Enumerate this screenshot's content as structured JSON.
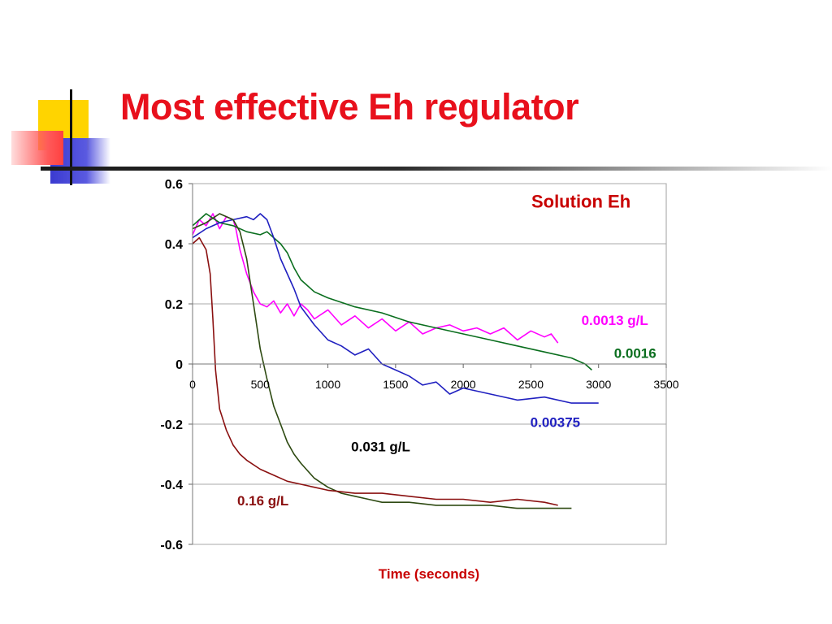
{
  "slide": {
    "title": "Most effective Eh regulator"
  },
  "chart_data": {
    "type": "line",
    "title": "Solution Eh",
    "xlabel": "Time (seconds)",
    "ylabel": "",
    "xlim": [
      0,
      3500
    ],
    "ylim": [
      -0.6,
      0.6
    ],
    "x_ticks": [
      "0",
      "500",
      "1000",
      "1500",
      "2000",
      "2500",
      "3000",
      "3500"
    ],
    "y_ticks": [
      "0.6",
      "0.4",
      "0.2",
      "0",
      "-0.2",
      "-0.4",
      "-0.6"
    ],
    "grid": true,
    "legend": "none (series labeled directly on plot)",
    "series": [
      {
        "name": "0.0013 g/L",
        "color": "#ff00ff",
        "x": [
          0,
          50,
          100,
          150,
          200,
          250,
          300,
          320,
          350,
          400,
          450,
          500,
          550,
          600,
          650,
          700,
          750,
          800,
          850,
          900,
          1000,
          1100,
          1200,
          1300,
          1400,
          1500,
          1600,
          1700,
          1800,
          1900,
          2000,
          2100,
          2200,
          2300,
          2400,
          2500,
          2600,
          2650,
          2700
        ],
        "y": [
          0.43,
          0.48,
          0.46,
          0.5,
          0.45,
          0.49,
          0.48,
          0.45,
          0.38,
          0.3,
          0.24,
          0.2,
          0.19,
          0.21,
          0.17,
          0.2,
          0.16,
          0.2,
          0.18,
          0.15,
          0.18,
          0.13,
          0.16,
          0.12,
          0.15,
          0.11,
          0.14,
          0.1,
          0.12,
          0.13,
          0.11,
          0.12,
          0.1,
          0.12,
          0.08,
          0.11,
          0.09,
          0.1,
          0.07
        ]
      },
      {
        "name": "0.0016",
        "color": "#0a6e1e",
        "x": [
          0,
          100,
          200,
          300,
          400,
          500,
          550,
          600,
          650,
          700,
          750,
          800,
          900,
          1000,
          1200,
          1400,
          1600,
          1800,
          2000,
          2200,
          2400,
          2600,
          2800,
          2900,
          2950
        ],
        "y": [
          0.46,
          0.5,
          0.47,
          0.46,
          0.44,
          0.43,
          0.44,
          0.42,
          0.4,
          0.37,
          0.32,
          0.28,
          0.24,
          0.22,
          0.19,
          0.17,
          0.14,
          0.12,
          0.1,
          0.08,
          0.06,
          0.04,
          0.02,
          0.0,
          -0.02
        ]
      },
      {
        "name": "0.00375",
        "color": "#2020c0",
        "x": [
          0,
          100,
          200,
          300,
          400,
          450,
          500,
          550,
          600,
          650,
          700,
          750,
          800,
          900,
          1000,
          1100,
          1200,
          1300,
          1400,
          1500,
          1600,
          1700,
          1800,
          1900,
          2000,
          2200,
          2400,
          2600,
          2800,
          3000
        ],
        "y": [
          0.42,
          0.45,
          0.47,
          0.48,
          0.49,
          0.48,
          0.5,
          0.48,
          0.42,
          0.35,
          0.3,
          0.25,
          0.19,
          0.13,
          0.08,
          0.06,
          0.03,
          0.05,
          0.0,
          -0.02,
          -0.04,
          -0.07,
          -0.06,
          -0.1,
          -0.08,
          -0.1,
          -0.12,
          -0.11,
          -0.13,
          -0.13
        ]
      },
      {
        "name": "0.031 g/L",
        "color": "#2e4a12",
        "x": [
          0,
          100,
          200,
          300,
          350,
          400,
          450,
          500,
          550,
          600,
          650,
          700,
          750,
          800,
          900,
          1000,
          1100,
          1200,
          1300,
          1400,
          1600,
          1800,
          2000,
          2200,
          2400,
          2600,
          2800
        ],
        "y": [
          0.45,
          0.47,
          0.5,
          0.48,
          0.44,
          0.35,
          0.2,
          0.05,
          -0.05,
          -0.14,
          -0.2,
          -0.26,
          -0.3,
          -0.33,
          -0.38,
          -0.41,
          -0.43,
          -0.44,
          -0.45,
          -0.46,
          -0.46,
          -0.47,
          -0.47,
          -0.47,
          -0.48,
          -0.48,
          -0.48
        ]
      },
      {
        "name": "0.16 g/L",
        "color": "#8a1010",
        "x": [
          0,
          50,
          100,
          130,
          150,
          170,
          200,
          250,
          300,
          350,
          400,
          500,
          600,
          700,
          800,
          900,
          1000,
          1200,
          1400,
          1600,
          1800,
          2000,
          2200,
          2400,
          2600,
          2700
        ],
        "y": [
          0.4,
          0.42,
          0.38,
          0.3,
          0.15,
          -0.02,
          -0.15,
          -0.22,
          -0.27,
          -0.3,
          -0.32,
          -0.35,
          -0.37,
          -0.39,
          -0.4,
          -0.41,
          -0.42,
          -0.43,
          -0.43,
          -0.44,
          -0.45,
          -0.45,
          -0.46,
          -0.45,
          -0.46,
          -0.47
        ]
      }
    ],
    "annotations": [
      {
        "text": "Solution Eh",
        "x": 2870,
        "y": 0.52,
        "color": "#c80000",
        "size": "large"
      },
      {
        "text": "0.0013 g/L",
        "x": 3120,
        "y": 0.13,
        "color": "#ff00ff",
        "size": "small"
      },
      {
        "text": "0.0016",
        "x": 3270,
        "y": 0.02,
        "color": "#0a6e1e",
        "size": "small"
      },
      {
        "text": "0.00375",
        "x": 2680,
        "y": -0.21,
        "color": "#2020c0",
        "size": "small"
      },
      {
        "text": "0.031 g/L",
        "x": 1390,
        "y": -0.29,
        "color": "#000000",
        "size": "small"
      },
      {
        "text": "0.16 g/L",
        "x": 520,
        "y": -0.47,
        "color": "#8a1010",
        "size": "small"
      }
    ]
  }
}
